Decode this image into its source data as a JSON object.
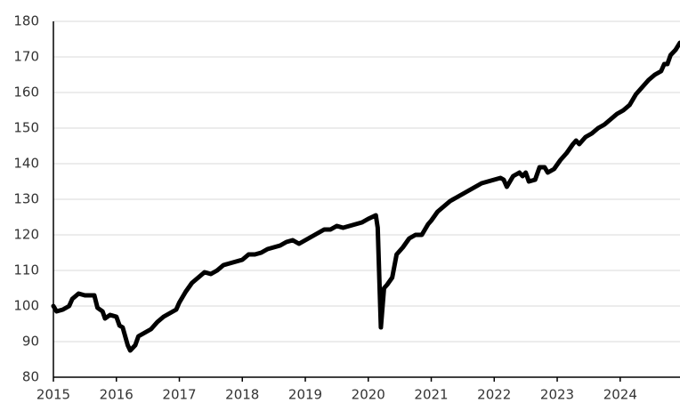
{
  "chart_data": {
    "type": "line",
    "x": [
      2015.0,
      2015.05,
      2015.15,
      2015.25,
      2015.3,
      2015.4,
      2015.5,
      2015.65,
      2015.7,
      2015.78,
      2015.82,
      2015.9,
      2016.0,
      2016.05,
      2016.1,
      2016.18,
      2016.22,
      2016.3,
      2016.35,
      2016.45,
      2016.55,
      2016.65,
      2016.75,
      2016.85,
      2016.95,
      2017.0,
      2017.1,
      2017.2,
      2017.3,
      2017.4,
      2017.5,
      2017.6,
      2017.7,
      2017.8,
      2017.9,
      2018.0,
      2018.1,
      2018.2,
      2018.3,
      2018.4,
      2018.5,
      2018.6,
      2018.7,
      2018.8,
      2018.9,
      2019.0,
      2019.1,
      2019.2,
      2019.3,
      2019.4,
      2019.5,
      2019.6,
      2019.7,
      2019.8,
      2019.9,
      2020.0,
      2020.12,
      2020.15,
      2020.2,
      2020.25,
      2020.3,
      2020.38,
      2020.45,
      2020.55,
      2020.65,
      2020.75,
      2020.85,
      2020.95,
      2021.0,
      2021.1,
      2021.2,
      2021.3,
      2021.4,
      2021.5,
      2021.6,
      2021.7,
      2021.8,
      2021.9,
      2022.0,
      2022.1,
      2022.15,
      2022.2,
      2022.3,
      2022.4,
      2022.45,
      2022.5,
      2022.55,
      2022.65,
      2022.72,
      2022.8,
      2022.85,
      2022.95,
      2023.05,
      2023.15,
      2023.25,
      2023.3,
      2023.35,
      2023.45,
      2023.55,
      2023.65,
      2023.75,
      2023.85,
      2023.95,
      2024.05,
      2024.15,
      2024.25,
      2024.35,
      2024.45,
      2024.55,
      2024.65,
      2024.7,
      2024.75,
      2024.8,
      2024.88,
      2024.95
    ],
    "series": [
      {
        "color": "#000000",
        "values": [
          100,
          98.5,
          99,
          100,
          102,
          103.5,
          103,
          103,
          99.5,
          98.5,
          96.5,
          97.5,
          97,
          94.5,
          94,
          89,
          87.5,
          89,
          91.5,
          92.5,
          93.5,
          95.5,
          97,
          98,
          99,
          101,
          104,
          106.5,
          108,
          109.5,
          109,
          110,
          111.5,
          112,
          112.5,
          113,
          114.5,
          114.5,
          115,
          116,
          116.5,
          117,
          118,
          118.5,
          117.5,
          118.5,
          119.5,
          120.5,
          121.5,
          121.5,
          122.5,
          122,
          122.5,
          123,
          123.5,
          124.5,
          125.5,
          122,
          94,
          105,
          106,
          108,
          114.5,
          116.5,
          119,
          120,
          120,
          123,
          124,
          126.5,
          128,
          129.5,
          130.5,
          131.5,
          132.5,
          133.5,
          134.5,
          135,
          135.5,
          136,
          135.5,
          133.5,
          136.5,
          137.5,
          136.5,
          137.5,
          135,
          135.5,
          139,
          139,
          137.5,
          138.5,
          141,
          143,
          145.5,
          146.5,
          145.5,
          147.5,
          148.5,
          150,
          151,
          152.5,
          154,
          155,
          156.5,
          159.5,
          161.5,
          163.5,
          165,
          166,
          168,
          168,
          170.5,
          172,
          174
        ]
      }
    ],
    "xlim": [
      2015,
      2024.95
    ],
    "xticks": [
      2015,
      2016,
      2017,
      2018,
      2019,
      2020,
      2021,
      2022,
      2023,
      2024
    ],
    "ylim": [
      80,
      180
    ],
    "yticks": [
      80,
      90,
      100,
      110,
      120,
      130,
      140,
      150,
      160,
      170,
      180
    ],
    "grid": true
  }
}
